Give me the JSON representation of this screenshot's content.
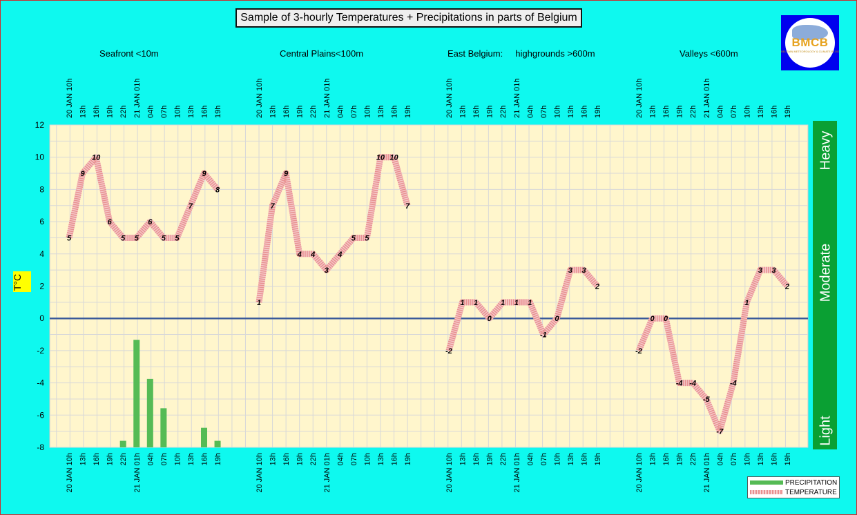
{
  "chart_data": {
    "type": "line",
    "title": "Sample of 3-hourly Temperatures + Precipitations in parts of Belgium",
    "ylabel": "T°C",
    "ylim": [
      -8,
      12
    ],
    "yticks": [
      12,
      10,
      8,
      6,
      4,
      2,
      0,
      -2,
      -4,
      -6,
      -8
    ],
    "grid": true,
    "legend_position": "bottom-right",
    "legend": [
      "PRECIPITATION",
      "TEMPERATURE"
    ],
    "precip_bands": [
      "Heavy",
      "Moderate",
      "Light"
    ],
    "colors": {
      "background": "#0ef9ef",
      "plot_area": "#fff6cc",
      "grid": "#d8d8d8",
      "zero_line": "#3a5a9a",
      "precipitation": "#55bb55",
      "temperature": "#e89090",
      "band": "#0aa033"
    },
    "panels": [
      {
        "region": "Seafront <10m",
        "categories": [
          "20 JAN 10h",
          "13h",
          "16h",
          "19h",
          "22h",
          "21 JAN 01h",
          "04h",
          "07h",
          "10h",
          "13h",
          "16h",
          "19h"
        ],
        "temperature": [
          5,
          9,
          10,
          6,
          5,
          5,
          6,
          5,
          5,
          7,
          9,
          8
        ],
        "precipitation": [
          0,
          0,
          0,
          0,
          0.4,
          6.6,
          4.2,
          2.4,
          0,
          0,
          1.2,
          0.4
        ]
      },
      {
        "region": "Central Plains<100m",
        "categories": [
          "20 JAN 10h",
          "13h",
          "16h",
          "19h",
          "22h",
          "21 JAN 01h",
          "04h",
          "07h",
          "10h",
          "13h",
          "16h",
          "19h"
        ],
        "temperature": [
          1,
          7,
          9,
          4,
          4,
          3,
          4,
          5,
          5,
          10,
          10,
          7
        ],
        "precipitation": [
          0,
          0,
          0,
          0,
          0,
          0,
          0,
          0,
          0,
          0,
          0,
          0
        ]
      },
      {
        "region": "East Belgium:     highgrounds >600m",
        "categories": [
          "20 JAN 10h",
          "13h",
          "16h",
          "19h",
          "22h",
          "21 JAN 01h",
          "04h",
          "07h",
          "10h",
          "13h",
          "16h",
          "19h"
        ],
        "temperature": [
          -2,
          1,
          1,
          0,
          1,
          1,
          1,
          -1,
          0,
          3,
          3,
          2
        ],
        "precipitation": [
          0,
          0,
          0,
          0,
          0,
          0,
          0,
          0,
          0,
          0,
          0,
          0
        ]
      },
      {
        "region": "Valleys <600m",
        "categories": [
          "20 JAN 10h",
          "13h",
          "16h",
          "19h",
          "22h",
          "21 JAN 01h",
          "04h",
          "07h",
          "10h",
          "13h",
          "16h",
          "19h"
        ],
        "temperature": [
          -2,
          0,
          0,
          -4,
          -4,
          -5,
          -7,
          -4,
          1,
          3,
          3,
          2
        ],
        "precipitation": [
          0,
          0,
          0,
          0,
          0,
          0,
          0,
          0,
          0,
          0,
          0,
          0
        ]
      }
    ]
  },
  "logo": {
    "text": "BMCB",
    "subtext": "BELGIAN METEOROLOGY & CLIMATE BLOG"
  }
}
